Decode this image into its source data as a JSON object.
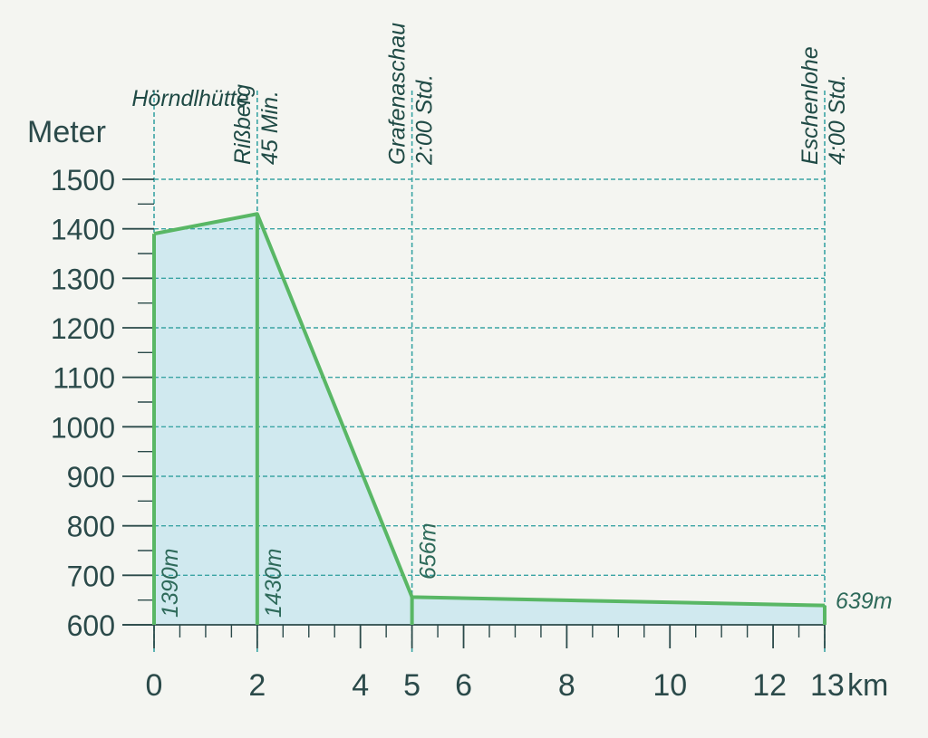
{
  "colors": {
    "background": "#f4f5f1",
    "profile_line": "#59b765",
    "profile_fill": "#c9e6ef",
    "grid": "#3aa4a4",
    "axis": "#2b4a4a",
    "text": "#1f4a45"
  },
  "chart_data": {
    "type": "area",
    "title": "",
    "xlabel": "km",
    "ylabel": "Meter",
    "xlim": [
      0,
      13
    ],
    "ylim": [
      600,
      1500
    ],
    "x_ticks": [
      0,
      2,
      4,
      5,
      6,
      8,
      10,
      12,
      13
    ],
    "x_tick_labels": [
      "0",
      "2",
      "4",
      "5",
      "6",
      "8",
      "10",
      "12",
      "13"
    ],
    "x_minor_ticks": [
      0.5,
      1,
      1.5,
      2.5,
      3,
      3.5,
      4.5,
      5.5,
      6.5,
      7,
      7.5,
      8.5,
      9,
      9.5,
      10.5,
      11,
      11.5,
      12.5
    ],
    "y_ticks": [
      600,
      700,
      800,
      900,
      1000,
      1100,
      1200,
      1300,
      1400,
      1500
    ],
    "y_tick_labels": [
      "600",
      "700",
      "800",
      "900",
      "1000",
      "1100",
      "1200",
      "1300",
      "1400",
      "1500"
    ],
    "y_minor_ticks": [
      650,
      750,
      850,
      950,
      1050,
      1150,
      1250,
      1350,
      1450
    ],
    "grid": true,
    "series": [
      {
        "points": [
          {
            "x": 0,
            "y": 1390
          },
          {
            "x": 2,
            "y": 1430
          },
          {
            "x": 5,
            "y": 656
          },
          {
            "x": 13,
            "y": 639
          }
        ]
      }
    ],
    "stations": [
      {
        "name": "Hörndlhütte",
        "time": "",
        "x": 0,
        "elevation_label": "1390m"
      },
      {
        "name": "Rißberg",
        "time": "45 Min.",
        "x": 2,
        "elevation_label": "1430m"
      },
      {
        "name": "Grafenaschau",
        "time": "2:00 Std.",
        "x": 5,
        "elevation_label": "656m"
      },
      {
        "name": "Eschenlohe",
        "time": "4:00 Std.",
        "x": 13,
        "elevation_label": "639m"
      }
    ]
  }
}
